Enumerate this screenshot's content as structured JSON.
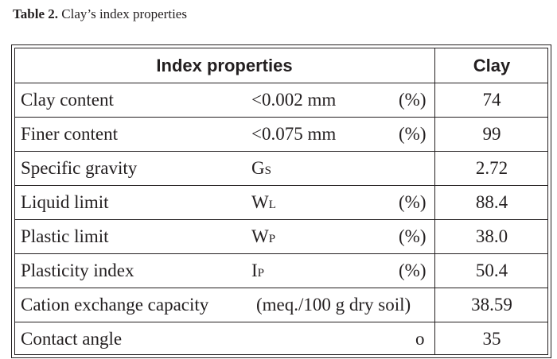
{
  "caption": {
    "label": "Table 2.",
    "text": " Clay’s index properties"
  },
  "header": {
    "property": "Index properties",
    "value": "Clay"
  },
  "rows": [
    {
      "property": "Clay content",
      "condition": "<0.002 mm",
      "symbol_main": "",
      "symbol_sub": "",
      "unit": "(%)",
      "value": "74"
    },
    {
      "property": "Finer content",
      "condition": "<0.075 mm",
      "symbol_main": "",
      "symbol_sub": "",
      "unit": "(%)",
      "value": "99"
    },
    {
      "property": "Specific gravity",
      "condition": "",
      "symbol_main": "G",
      "symbol_sub": "S",
      "unit": "",
      "value": "2.72"
    },
    {
      "property": "Liquid limit",
      "condition": "",
      "symbol_main": "W",
      "symbol_sub": "L",
      "unit": "(%)",
      "value": "88.4"
    },
    {
      "property": "Plastic limit",
      "condition": "",
      "symbol_main": "W",
      "symbol_sub": "P",
      "unit": "(%)",
      "value": "38.0"
    },
    {
      "property": "Plasticity index",
      "condition": "",
      "symbol_main": "I",
      "symbol_sub": "P",
      "unit": "(%)",
      "value": "50.4"
    },
    {
      "property": "Cation exchange capacity",
      "condition": "",
      "symbol_main": "",
      "symbol_sub": "",
      "unit": "(meq./100 g dry soil)",
      "value": "38.59"
    },
    {
      "property": "Contact angle",
      "condition": "",
      "symbol_main": "",
      "symbol_sub": "",
      "unit": "o",
      "value": "35"
    }
  ]
}
